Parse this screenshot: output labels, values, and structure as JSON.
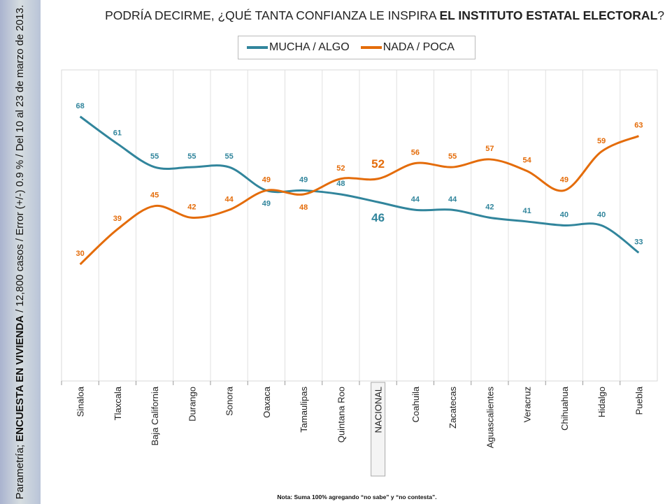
{
  "side_note": {
    "prefix": "Parametría; ",
    "bold": "ENCUESTA EN VIVIENDA",
    "suffix": " / 12,800 casos / Error (+/-) 0.9 % / Del 10 al 23 de marzo de 2013."
  },
  "title": {
    "prefix": "PODRÍA DECIRME, ¿QUÉ TANTA CONFIANZA LE INSPIRA ",
    "bold": "EL INSTITUTO ESTATAL ELECTORAL",
    "suffix": "?"
  },
  "note": "Nota: Suma 100% agregando “no sabe” y “no contesta”.",
  "chart_data": {
    "type": "line",
    "title": "PODRÍA DECIRME, ¿QUÉ TANTA CONFIANZA LE INSPIRA EL INSTITUTO ESTATAL ELECTORAL?",
    "categories": [
      "Sinaloa",
      "Tlaxcala",
      "Baja California",
      "Durango",
      "Sonora",
      "Oaxaca",
      "Tamaulipas",
      "Quintana Roo",
      "NACIONAL",
      "Coahuila",
      "Zacatecas",
      "Aguascalientes",
      "Veracruz",
      "Chihuahua",
      "Hidalgo",
      "Puebla"
    ],
    "highlight_category": "NACIONAL",
    "ylim": [
      0,
      80
    ],
    "grid": "vertical",
    "legend": "top",
    "series": [
      {
        "name": "MUCHA / ALGO",
        "color": "#31859c",
        "values": [
          68,
          61,
          55,
          55,
          55,
          49,
          49,
          48,
          46,
          44,
          44,
          42,
          41,
          40,
          40,
          33
        ]
      },
      {
        "name": "NADA / POCA",
        "color": "#e46c0a",
        "values": [
          30,
          39,
          45,
          42,
          44,
          49,
          48,
          52,
          52,
          56,
          55,
          57,
          54,
          49,
          59,
          63
        ]
      }
    ]
  }
}
